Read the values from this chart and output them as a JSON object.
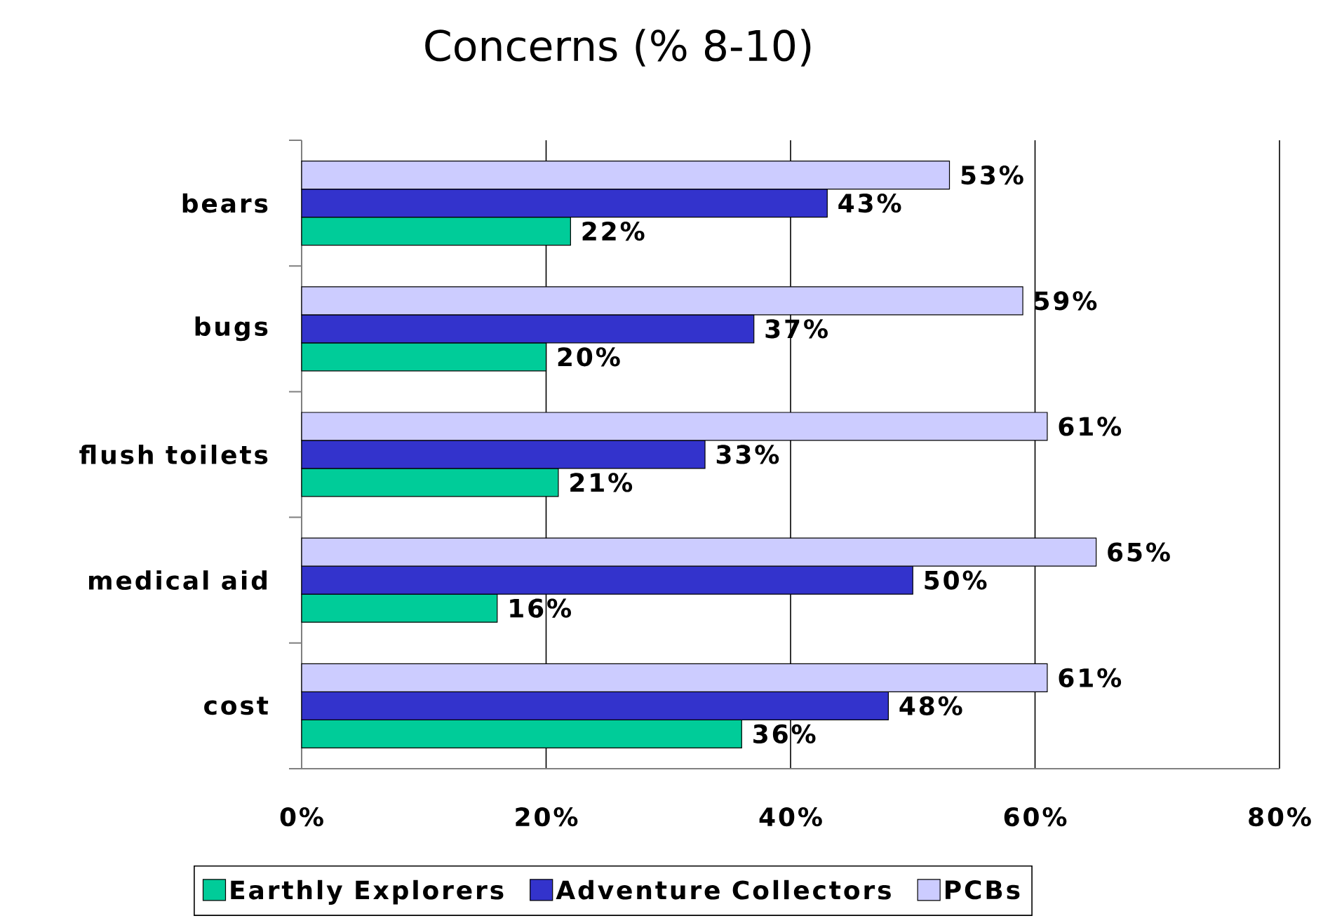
{
  "chart_data": {
    "type": "bar",
    "title": "Concerns (% 8-10)",
    "orientation": "horizontal",
    "categories": [
      "bears",
      "bugs",
      "flush toilets",
      "medical aid",
      "cost"
    ],
    "series": [
      {
        "name": "Earthly Explorers",
        "color": "#00cc99",
        "values": [
          22,
          20,
          21,
          16,
          36
        ],
        "value_labels": [
          "22%",
          "20%",
          "21%",
          "16%",
          "36%"
        ]
      },
      {
        "name": "Adventure Collectors",
        "color": "#3333cc",
        "values": [
          43,
          37,
          33,
          50,
          48
        ],
        "value_labels": [
          "43%",
          "37%",
          "33%",
          "50%",
          "48%"
        ]
      },
      {
        "name": "PCBs",
        "color": "#ccccff",
        "values": [
          53,
          59,
          61,
          65,
          61
        ],
        "value_labels": [
          "53%",
          "59%",
          "61%",
          "65%",
          "61%"
        ]
      }
    ],
    "xlim": [
      0,
      80
    ],
    "xticks": [
      {
        "value": 0,
        "label": "0%"
      },
      {
        "value": 20,
        "label": "20%"
      },
      {
        "value": 40,
        "label": "40%"
      },
      {
        "value": 60,
        "label": "60%"
      },
      {
        "value": 80,
        "label": "80%"
      }
    ],
    "grid": "x",
    "legend": "bottom"
  }
}
